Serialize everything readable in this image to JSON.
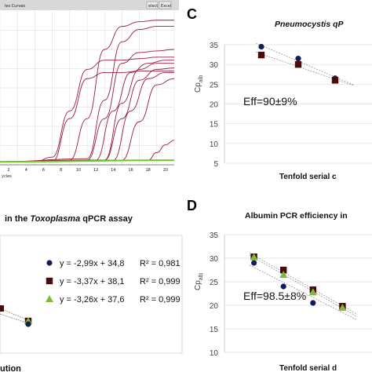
{
  "panels": {
    "curves": {
      "header_left": "les Curves",
      "header_btn1": "elect",
      "header_btn2": "Excel",
      "x_ticks": [
        "2",
        "4",
        "6",
        "8",
        "10",
        "12",
        "14",
        "16",
        "18",
        "20"
      ],
      "xlabel": "ycles",
      "colors": {
        "curve": "#9b1b3b",
        "baseline": "#66cc22",
        "grid": "#cfcfcf",
        "header": "#d8d8d8"
      }
    },
    "toxo": {
      "title": "in the",
      "title_italic": "Toxoplasma",
      "title_end": "qPCR assay",
      "xlabel": "ution",
      "legend": [
        {
          "marker": "circle",
          "color": "#0d1f55",
          "equation": "y = -2,99x + 34,8",
          "r2": "R² = 0,981"
        },
        {
          "marker": "square",
          "color": "#4a0a0a",
          "equation": "y = -3,37x + 38,1",
          "r2": "R² = 0,999"
        },
        {
          "marker": "triangle",
          "color": "#7fba3c",
          "equation": "y = -3,26x + 37,6",
          "r2": "R² = 0,999"
        }
      ]
    },
    "C": {
      "letter": "C",
      "title": "Pneumocystis qP",
      "ylabel": "Cp",
      "ylabel_sub": "alb",
      "eff": "Eff=90±9%",
      "xlabel": "Tenfold serial c",
      "y_ticks": [
        "35",
        "30",
        "25",
        "20",
        "15",
        "10",
        "5"
      ]
    },
    "D": {
      "letter": "D",
      "title": "Albumin PCR efficiency in",
      "ylabel": "Cp",
      "ylabel_sub": "alb",
      "eff": "Eff=98.5±8%",
      "xlabel": "Tenfold serial d",
      "y_ticks": [
        "35",
        "30",
        "25",
        "20",
        "15",
        "10"
      ]
    }
  },
  "chart_data": [
    {
      "type": "line",
      "title": "",
      "xlabel": "ycles",
      "x_range": [
        0,
        20
      ],
      "y_range": [
        0,
        1
      ],
      "series": [
        {
          "x": [
            0,
            4,
            6,
            8,
            10,
            12,
            14,
            16,
            18,
            20
          ],
          "y": [
            0.02,
            0.02,
            0.05,
            0.35,
            0.62,
            0.68,
            0.68,
            0.69,
            0.7,
            0.7
          ]
        },
        {
          "x": [
            0,
            6,
            8,
            10,
            12,
            14,
            16,
            18,
            20
          ],
          "y": [
            0.02,
            0.02,
            0.3,
            0.56,
            0.6,
            0.6,
            0.61,
            0.61,
            0.61
          ]
        },
        {
          "x": [
            0,
            8,
            10,
            12,
            14,
            16,
            18,
            20
          ],
          "y": [
            0.02,
            0.03,
            0.3,
            0.75,
            0.9,
            0.93,
            0.94,
            0.94
          ]
        },
        {
          "x": [
            0,
            10,
            12,
            14,
            16,
            18,
            20
          ],
          "y": [
            0.02,
            0.04,
            0.42,
            0.8,
            0.88,
            0.9,
            0.9
          ]
        },
        {
          "x": [
            0,
            10,
            12,
            14,
            16,
            18,
            20
          ],
          "y": [
            0.02,
            0.03,
            0.3,
            0.66,
            0.73,
            0.74,
            0.75
          ]
        },
        {
          "x": [
            0,
            11,
            13,
            15,
            17,
            19,
            20
          ],
          "y": [
            0.02,
            0.03,
            0.35,
            0.6,
            0.66,
            0.68,
            0.68
          ]
        },
        {
          "x": [
            0,
            12,
            14,
            16,
            18,
            20
          ],
          "y": [
            0.02,
            0.03,
            0.4,
            0.62,
            0.66,
            0.66
          ]
        },
        {
          "x": [
            0,
            12,
            14,
            16,
            18,
            20
          ],
          "y": [
            0.02,
            0.03,
            0.3,
            0.55,
            0.62,
            0.63
          ]
        },
        {
          "x": [
            0,
            13,
            15,
            17,
            19,
            20
          ],
          "y": [
            0.02,
            0.03,
            0.35,
            0.56,
            0.6,
            0.6
          ]
        },
        {
          "x": [
            0,
            14,
            16,
            18,
            20
          ],
          "y": [
            0.02,
            0.03,
            0.28,
            0.52,
            0.56
          ]
        },
        {
          "x": [
            0,
            17,
            18,
            19,
            20
          ],
          "y": [
            0.02,
            0.03,
            0.08,
            0.13,
            0.16
          ]
        },
        {
          "x": [
            0,
            20
          ],
          "y": [
            0.02,
            0.03
          ]
        }
      ]
    },
    {
      "type": "scatter",
      "title": "in the Toxoplasma qPCR assay",
      "xlabel": "ution",
      "series": [
        {
          "equation": "y = -2,99x + 34,8",
          "r2": "R² = 0,981",
          "points": [
            {
              "x": 5,
              "y": 19.0
            }
          ]
        },
        {
          "equation": "y = -3,37x + 38,1",
          "r2": "R² = 0,999",
          "points": [
            {
              "x": 5,
              "y": 21.3
            }
          ]
        },
        {
          "equation": "y = -3,26x + 37,6",
          "r2": "R² = 0,999",
          "points": [
            {
              "x": 5,
              "y": 21.3
            }
          ]
        }
      ]
    },
    {
      "type": "scatter",
      "title": "Pneumocystis qP",
      "ylabel": "Cp alb",
      "xlabel": "Tenfold serial c",
      "ylim": [
        5,
        35
      ],
      "x_range": [
        0,
        4
      ],
      "annotation": "Eff=90±9%",
      "series": [
        {
          "marker": "circle",
          "color": "#0d1f55",
          "points": [
            {
              "x": 1,
              "y": 34.5
            },
            {
              "x": 2,
              "y": 31.5
            },
            {
              "x": 3,
              "y": 26.5
            }
          ]
        },
        {
          "marker": "square",
          "color": "#4a0a0a",
          "points": [
            {
              "x": 1,
              "y": 32.4
            },
            {
              "x": 2,
              "y": 30.0
            },
            {
              "x": 3,
              "y": 26.0
            }
          ]
        }
      ]
    },
    {
      "type": "scatter",
      "title": "Albumin PCR efficiency in",
      "ylabel": "Cp alb",
      "xlabel": "Tenfold serial d",
      "ylim": [
        10,
        35
      ],
      "x_range": [
        0,
        5
      ],
      "annotation": "Eff=98.5±8%",
      "series": [
        {
          "marker": "circle",
          "color": "#0d1f55",
          "points": [
            {
              "x": 1,
              "y": 29.0
            },
            {
              "x": 2,
              "y": 24.0
            },
            {
              "x": 3,
              "y": 20.5
            },
            {
              "x": 4,
              "y": 19.5
            }
          ]
        },
        {
          "marker": "square",
          "color": "#4a0a0a",
          "points": [
            {
              "x": 1,
              "y": 30.3
            },
            {
              "x": 2,
              "y": 27.5
            },
            {
              "x": 3,
              "y": 23.3
            },
            {
              "x": 4,
              "y": 19.8
            }
          ]
        },
        {
          "marker": "triangle",
          "color": "#7fba3c",
          "points": [
            {
              "x": 1,
              "y": 30.2
            },
            {
              "x": 2,
              "y": 26.5
            },
            {
              "x": 3,
              "y": 22.8
            },
            {
              "x": 4,
              "y": 19.5
            }
          ]
        }
      ]
    }
  ]
}
